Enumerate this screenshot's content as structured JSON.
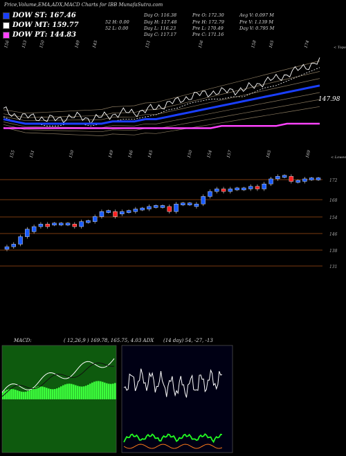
{
  "header": {
    "title": "Price,Volume,EMA,ADX,MACD Charts for IBB MunafaSutra.com",
    "dow": [
      {
        "label": "DOW ST: 167.46",
        "color": "#1a3fff"
      },
      {
        "label": "DOW MT: 159.77",
        "color": "#ffffff"
      },
      {
        "label": "DOW PT: 144.83",
        "color": "#ff44ff"
      }
    ],
    "stats": [
      [
        "Day O: 116.38",
        "Pre O: 172.30",
        "Avg V: 0.097 M"
      ],
      [
        "52 H: 0.00",
        "Day H: 117.48",
        "Pre H: 172.79",
        "Pre V: 1.139 M"
      ],
      [
        "52 L: 0.00",
        "Day L: 116.23",
        "Pre L: 170.49",
        "Day V: 0.795 M"
      ],
      [
        "",
        "Day C: 117.17",
        "Pre C: 171.16"
      ]
    ]
  },
  "ema_panel": {
    "top_labels": [
      "156",
      "153",
      "150",
      "",
      "149",
      "145",
      "",
      "",
      "151",
      "",
      "",
      "156",
      "",
      "",
      "158",
      "165",
      "",
      "174"
    ],
    "bottom_labels": [
      "155",
      "151",
      "",
      "150",
      "",
      "149",
      "146",
      "145",
      "",
      "150",
      "154",
      "157",
      "",
      "165",
      "",
      "169"
    ],
    "corner_label": "< Topo",
    "price_label": "147.98"
  },
  "candle_panel": {
    "corner_label": "< Lowes",
    "levels": [
      "172",
      "168",
      "154",
      "146",
      "138",
      "131"
    ]
  },
  "macd_panel": {
    "label": "MACD:",
    "params": "( 12,26,9 ) 169.78, 165.75, 4.03 ADX"
  },
  "adx_panel": {
    "params": "(14 day) 54, -27, -13"
  },
  "chart_data": [
    {
      "type": "line",
      "title": "EMA",
      "series": [
        {
          "color": "#ffffff",
          "values": [
            152,
            150,
            149,
            149,
            148,
            148,
            149,
            149,
            148,
            149,
            150,
            151,
            151,
            152,
            153,
            155,
            156,
            158,
            159,
            160,
            160,
            161,
            161,
            163,
            165,
            166,
            168,
            170,
            172,
            174
          ]
        },
        {
          "color": "#1a3fff",
          "values": [
            150,
            149,
            148,
            148,
            148,
            148,
            148,
            148,
            148,
            148,
            149,
            149,
            149,
            150,
            150,
            151,
            152,
            153,
            154,
            155,
            156,
            157,
            158,
            159,
            160,
            161,
            162,
            163,
            164,
            165
          ]
        },
        {
          "color": "#ff44ff",
          "values": [
            146,
            146,
            146,
            146,
            146,
            146,
            146,
            146,
            146,
            146,
            146,
            146,
            146,
            146,
            146,
            146,
            146,
            146,
            146,
            146,
            147,
            147,
            147,
            147,
            147,
            147,
            148,
            148,
            148,
            148
          ]
        }
      ]
    },
    {
      "type": "candlestick",
      "title": "Price",
      "levels": [
        172,
        168,
        154,
        146,
        138,
        131
      ],
      "candles": [
        {
          "o": 144,
          "c": 145
        },
        {
          "o": 145,
          "c": 146
        },
        {
          "o": 146,
          "c": 149
        },
        {
          "o": 149,
          "c": 152
        },
        {
          "o": 151,
          "c": 153
        },
        {
          "o": 153,
          "c": 154
        },
        {
          "o": 154,
          "c": 153
        },
        {
          "o": 154,
          "c": 154
        },
        {
          "o": 154,
          "c": 154
        },
        {
          "o": 154,
          "c": 154
        },
        {
          "o": 154,
          "c": 153
        },
        {
          "o": 153,
          "c": 155
        },
        {
          "o": 155,
          "c": 155
        },
        {
          "o": 155,
          "c": 157
        },
        {
          "o": 157,
          "c": 159
        },
        {
          "o": 159,
          "c": 159
        },
        {
          "o": 159,
          "c": 157
        },
        {
          "o": 158,
          "c": 159
        },
        {
          "o": 159,
          "c": 159
        },
        {
          "o": 159,
          "c": 160
        },
        {
          "o": 160,
          "c": 160
        },
        {
          "o": 160,
          "c": 161
        },
        {
          "o": 161,
          "c": 161
        },
        {
          "o": 161,
          "c": 161
        },
        {
          "o": 161,
          "c": 159
        },
        {
          "o": 159,
          "c": 162
        },
        {
          "o": 162,
          "c": 162
        },
        {
          "o": 162,
          "c": 162
        },
        {
          "o": 161,
          "c": 162
        },
        {
          "o": 162,
          "c": 165
        },
        {
          "o": 165,
          "c": 167
        },
        {
          "o": 167,
          "c": 168
        },
        {
          "o": 168,
          "c": 167
        },
        {
          "o": 167,
          "c": 168
        },
        {
          "o": 168,
          "c": 168
        },
        {
          "o": 168,
          "c": 168
        },
        {
          "o": 168,
          "c": 169
        },
        {
          "o": 169,
          "c": 168
        },
        {
          "o": 168,
          "c": 170
        },
        {
          "o": 170,
          "c": 172
        },
        {
          "o": 172,
          "c": 173
        },
        {
          "o": 173,
          "c": 173
        },
        {
          "o": 173,
          "c": 171
        },
        {
          "o": 171,
          "c": 171
        },
        {
          "o": 171,
          "c": 172
        },
        {
          "o": 172,
          "c": 172
        },
        {
          "o": 172,
          "c": 172
        }
      ]
    }
  ]
}
